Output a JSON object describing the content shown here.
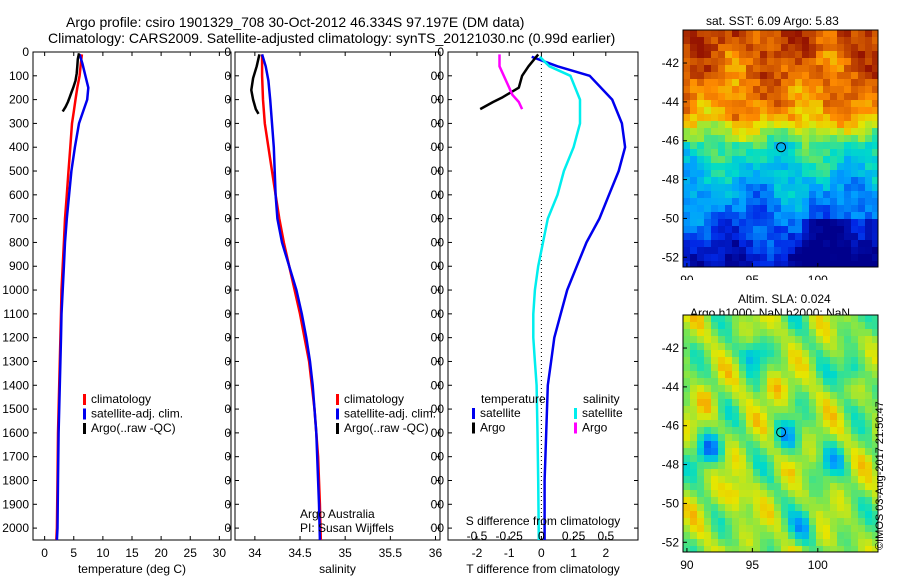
{
  "header": {
    "line1": "Argo profile: csiro 1901329_708 30-Oct-2012 46.334S 97.197E (DM data)",
    "line2": "Climatology: CARS2009. Satellite-adjusted climatology: synTS_20121030.nc (0.99d earlier)"
  },
  "credit": "©IMOS 03-Aug-2017 21:50:47",
  "colors": {
    "climatology": "#ff0000",
    "satellite": "#0000ee",
    "argo": "#000000",
    "sat_s": "#00eeee",
    "argo_s": "#ff00ff"
  },
  "chart_data": [
    {
      "id": "temperature",
      "type": "line",
      "xlabel": "temperature (deg C)",
      "x_ticks": [
        0,
        5,
        10,
        15,
        20,
        25,
        30
      ],
      "y_ticks": [
        0,
        100,
        200,
        300,
        400,
        500,
        600,
        700,
        800,
        900,
        1000,
        1100,
        1200,
        1300,
        1400,
        1500,
        1600,
        1700,
        1800,
        1900,
        2000
      ],
      "xlim": [
        -2,
        32
      ],
      "ylim": [
        2050,
        0
      ],
      "legend": [
        "climatology",
        "satellite-adj. clim.",
        "Argo(..raw -QC)"
      ],
      "series": [
        {
          "name": "climatology",
          "color": "#ff0000",
          "points": [
            [
              6.4,
              10
            ],
            [
              6.2,
              50
            ],
            [
              6.0,
              100
            ],
            [
              5.6,
              150
            ],
            [
              5.3,
              200
            ],
            [
              5.0,
              250
            ],
            [
              4.7,
              300
            ],
            [
              4.4,
              400
            ],
            [
              4.1,
              500
            ],
            [
              3.8,
              600
            ],
            [
              3.5,
              700
            ],
            [
              3.3,
              800
            ],
            [
              3.1,
              900
            ],
            [
              2.9,
              1000
            ],
            [
              2.8,
              1100
            ],
            [
              2.7,
              1200
            ],
            [
              2.6,
              1300
            ],
            [
              2.5,
              1400
            ],
            [
              2.4,
              1500
            ],
            [
              2.3,
              1600
            ],
            [
              2.2,
              1800
            ],
            [
              2.1,
              2000
            ],
            [
              2.0,
              2050
            ]
          ]
        },
        {
          "name": "satellite-adj. clim.",
          "color": "#0000ee",
          "points": [
            [
              6.0,
              10
            ],
            [
              6.5,
              50
            ],
            [
              7.0,
              100
            ],
            [
              7.5,
              150
            ],
            [
              7.3,
              200
            ],
            [
              6.6,
              250
            ],
            [
              5.9,
              300
            ],
            [
              5.2,
              400
            ],
            [
              4.6,
              500
            ],
            [
              4.2,
              600
            ],
            [
              3.8,
              700
            ],
            [
              3.5,
              800
            ],
            [
              3.3,
              900
            ],
            [
              3.1,
              1000
            ],
            [
              2.9,
              1100
            ],
            [
              2.8,
              1200
            ],
            [
              2.7,
              1300
            ],
            [
              2.6,
              1400
            ],
            [
              2.5,
              1500
            ],
            [
              2.4,
              1600
            ],
            [
              2.3,
              1800
            ],
            [
              2.2,
              2000
            ],
            [
              2.1,
              2050
            ]
          ]
        },
        {
          "name": "Argo(..raw -QC)",
          "color": "#000000",
          "points": [
            [
              5.9,
              5
            ],
            [
              5.7,
              30
            ],
            [
              5.6,
              60
            ],
            [
              5.5,
              90
            ],
            [
              5.3,
              120
            ],
            [
              4.9,
              150
            ],
            [
              4.6,
              170
            ],
            [
              4.3,
              190
            ],
            [
              4.0,
              210
            ],
            [
              3.6,
              230
            ],
            [
              3.1,
              250
            ]
          ]
        }
      ]
    },
    {
      "id": "salinity",
      "type": "line",
      "xlabel": "salinity",
      "x_ticks": [
        34,
        34.5,
        35,
        35.5,
        36
      ],
      "x_tick_labels": [
        "34",
        "34.5",
        "35",
        "35.5",
        "36"
      ],
      "y_ticks": [
        0,
        100,
        200,
        300,
        400,
        500,
        600,
        700,
        800,
        900,
        1000,
        1100,
        1200,
        1300,
        1400,
        1500,
        1600,
        1700,
        1800,
        1900,
        2000
      ],
      "xlim": [
        33.78,
        36.05
      ],
      "ylim": [
        2050,
        0
      ],
      "legend": [
        "climatology",
        "satellite-adj. clim.",
        "Argo(..raw -QC)"
      ],
      "annotation": [
        "Argo Australia",
        "PI: Susan Wijffels"
      ],
      "series": [
        {
          "name": "climatology",
          "color": "#ff0000",
          "points": [
            [
              34.08,
              10
            ],
            [
              34.08,
              100
            ],
            [
              34.09,
              200
            ],
            [
              34.11,
              300
            ],
            [
              34.15,
              400
            ],
            [
              34.19,
              500
            ],
            [
              34.23,
              600
            ],
            [
              34.27,
              700
            ],
            [
              34.32,
              800
            ],
            [
              34.38,
              900
            ],
            [
              34.44,
              1000
            ],
            [
              34.5,
              1100
            ],
            [
              34.55,
              1200
            ],
            [
              34.6,
              1300
            ],
            [
              34.63,
              1400
            ],
            [
              34.66,
              1500
            ],
            [
              34.68,
              1600
            ],
            [
              34.7,
              1700
            ],
            [
              34.71,
              1800
            ],
            [
              34.72,
              1900
            ],
            [
              34.73,
              2050
            ]
          ]
        },
        {
          "name": "satellite-adj. clim.",
          "color": "#0000ee",
          "points": [
            [
              34.08,
              10
            ],
            [
              34.12,
              60
            ],
            [
              34.15,
              120
            ],
            [
              34.17,
              200
            ],
            [
              34.19,
              300
            ],
            [
              34.21,
              400
            ],
            [
              34.22,
              500
            ],
            [
              34.23,
              600
            ],
            [
              34.25,
              700
            ],
            [
              34.3,
              800
            ],
            [
              34.38,
              900
            ],
            [
              34.46,
              1000
            ],
            [
              34.52,
              1100
            ],
            [
              34.57,
              1200
            ],
            [
              34.61,
              1300
            ],
            [
              34.64,
              1400
            ],
            [
              34.66,
              1500
            ],
            [
              34.68,
              1600
            ],
            [
              34.69,
              1700
            ],
            [
              34.7,
              1800
            ],
            [
              34.71,
              1900
            ],
            [
              34.72,
              2050
            ]
          ]
        },
        {
          "name": "Argo(..raw -QC)",
          "color": "#000000",
          "points": [
            [
              34.05,
              10
            ],
            [
              34.02,
              60
            ],
            [
              33.98,
              110
            ],
            [
              33.96,
              160
            ],
            [
              33.98,
              200
            ],
            [
              34.01,
              240
            ],
            [
              34.04,
              260
            ]
          ]
        }
      ]
    },
    {
      "id": "difference",
      "type": "line",
      "xlabel": "T difference from climatology",
      "xlabel2": "S difference from climatology",
      "x_ticks": [
        -2,
        -1,
        0,
        1,
        2
      ],
      "x2_ticks": [
        -0.5,
        -0.25,
        0,
        0.25,
        0.5
      ],
      "x2_tick_labels": [
        "-0.5",
        "-0.25",
        "0",
        "0.25",
        "0.5"
      ],
      "y_ticks": [
        0,
        100,
        200,
        300,
        400,
        500,
        600,
        700,
        800,
        900,
        1000,
        1100,
        1200,
        1300,
        1400,
        1500,
        1600,
        1700,
        1800,
        1900,
        2000
      ],
      "xlim": [
        -2.9,
        3.0
      ],
      "ylim": [
        2050,
        0
      ],
      "legend_headers": [
        "temperature",
        "salinity"
      ],
      "legend": [
        "satellite",
        "Argo",
        "satellite",
        "Argo"
      ],
      "series": [
        {
          "name": "satellite",
          "group": "temperature",
          "color": "#0000ee",
          "points": [
            [
              -0.3,
              20
            ],
            [
              0.5,
              60
            ],
            [
              1.5,
              100
            ],
            [
              2.2,
              200
            ],
            [
              2.5,
              300
            ],
            [
              2.6,
              400
            ],
            [
              2.4,
              500
            ],
            [
              2.1,
              600
            ],
            [
              1.8,
              700
            ],
            [
              1.4,
              800
            ],
            [
              1.1,
              900
            ],
            [
              0.8,
              1000
            ],
            [
              0.6,
              1100
            ],
            [
              0.4,
              1200
            ],
            [
              0.3,
              1300
            ],
            [
              0.2,
              1400
            ],
            [
              0.15,
              1600
            ],
            [
              0.1,
              1800
            ],
            [
              0.1,
              2050
            ]
          ]
        },
        {
          "name": "Argo",
          "group": "temperature",
          "color": "#000000",
          "points": [
            [
              -0.1,
              10
            ],
            [
              -0.4,
              60
            ],
            [
              -0.6,
              100
            ],
            [
              -0.7,
              150
            ],
            [
              -1.2,
              190
            ],
            [
              -1.5,
              210
            ],
            [
              -1.9,
              240
            ]
          ]
        },
        {
          "name": "satellite",
          "group": "salinity",
          "color": "#00eeee",
          "points": [
            [
              -0.05,
              20
            ],
            [
              0.25,
              60
            ],
            [
              0.9,
              100
            ],
            [
              1.2,
              200
            ],
            [
              1.2,
              300
            ],
            [
              1.0,
              400
            ],
            [
              0.7,
              500
            ],
            [
              0.5,
              600
            ],
            [
              0.2,
              700
            ],
            [
              0.05,
              800
            ],
            [
              -0.1,
              900
            ],
            [
              -0.2,
              1000
            ],
            [
              -0.25,
              1100
            ],
            [
              -0.25,
              1200
            ],
            [
              -0.2,
              1300
            ],
            [
              -0.15,
              1400
            ],
            [
              -0.12,
              1600
            ],
            [
              -0.1,
              1800
            ],
            [
              -0.08,
              2050
            ]
          ]
        },
        {
          "name": "Argo",
          "group": "salinity",
          "color": "#ff00ff",
          "points": [
            [
              -1.3,
              10
            ],
            [
              -1.3,
              60
            ],
            [
              -1.1,
              120
            ],
            [
              -0.9,
              180
            ],
            [
              -0.7,
              210
            ],
            [
              -0.6,
              240
            ]
          ]
        }
      ]
    },
    {
      "id": "sst-map",
      "type": "heatmap",
      "title": "sat. SST: 6.09 Argo: 5.83",
      "x_ticks": [
        90,
        95,
        100
      ],
      "y_ticks": [
        -42,
        -44,
        -46,
        -48,
        -50,
        -52
      ],
      "xlim": [
        89.7,
        104.6
      ],
      "ylim": [
        -52.5,
        -40.3
      ],
      "marker": [
        97.197,
        -46.334
      ]
    },
    {
      "id": "sla-map",
      "type": "heatmap",
      "title": "Altim. SLA: 0.024",
      "subtitle": "Argo h1000: NaN h2000: NaN",
      "x_ticks": [
        90,
        95,
        100
      ],
      "y_ticks": [
        -42,
        -44,
        -46,
        -48,
        -50,
        -52
      ],
      "xlim": [
        89.7,
        104.6
      ],
      "ylim": [
        -52.5,
        -40.3
      ],
      "marker": [
        97.197,
        -46.334
      ]
    }
  ]
}
